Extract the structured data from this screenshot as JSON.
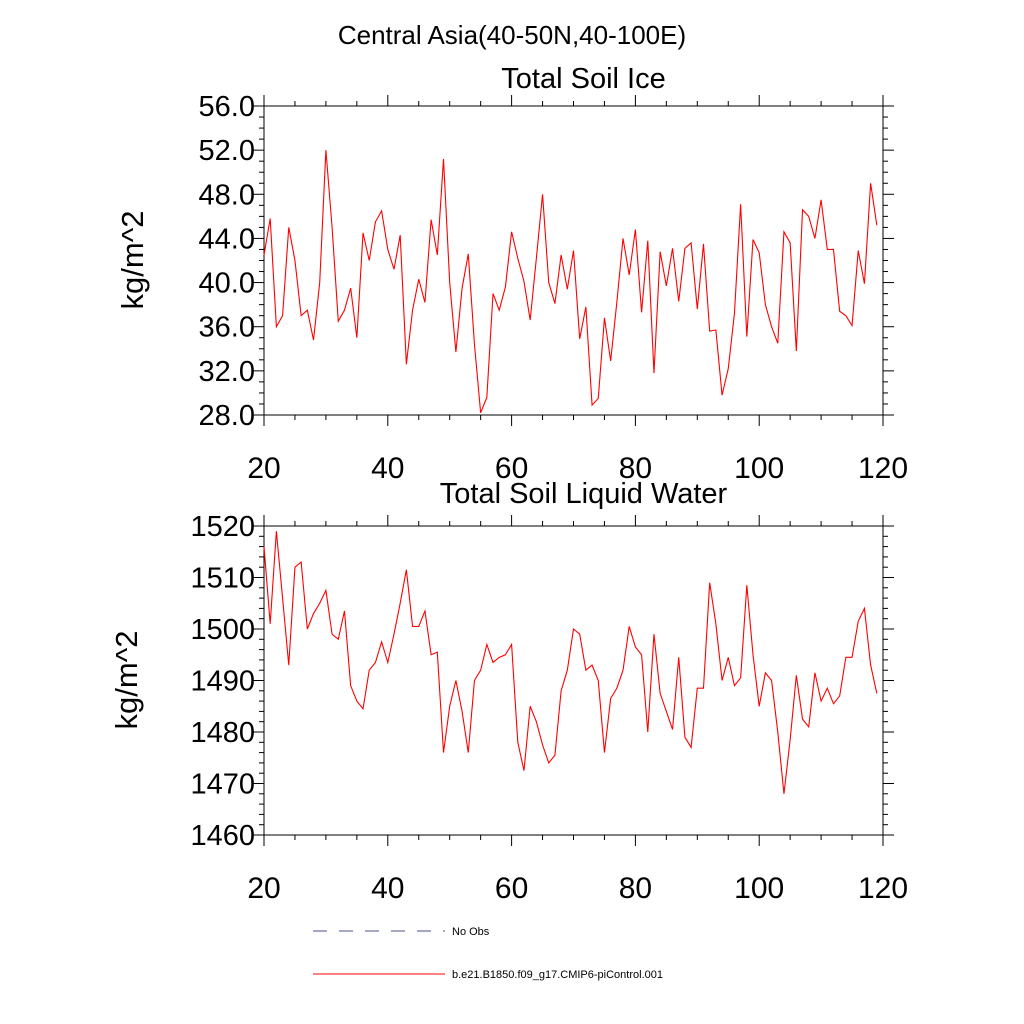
{
  "figure": {
    "region_title": "Central Asia(40-50N,40-100E)"
  },
  "chart_data": [
    {
      "type": "line",
      "title": "Total Soil Ice",
      "xlabel": "",
      "ylabel": "kg/m^2",
      "xlim": [
        20,
        120
      ],
      "ylim": [
        28,
        56
      ],
      "x_ticks": [
        20,
        40,
        60,
        80,
        100,
        120
      ],
      "x_tick_labels": [
        "20",
        "40",
        "60",
        "80",
        "100",
        "120"
      ],
      "y_ticks": [
        28,
        32,
        36,
        40,
        44,
        48,
        52,
        56
      ],
      "y_tick_labels": [
        "28.0",
        "32.0",
        "36.0",
        "40.0",
        "44.0",
        "48.0",
        "52.0",
        "56.0"
      ],
      "x_start": 20,
      "series": [
        {
          "name": "b.e21.B1850.f09_g17.CMIP6-piControl.001",
          "color": "#ff0000",
          "values": [
            42.5,
            45.8,
            36.0,
            37.0,
            45.0,
            42.0,
            37.0,
            37.5,
            34.8,
            40.0,
            52.0,
            45.0,
            36.5,
            37.5,
            39.5,
            35.0,
            44.5,
            42.0,
            45.5,
            46.5,
            43.0,
            41.2,
            44.3,
            32.6,
            37.5,
            40.3,
            38.2,
            45.7,
            42.5,
            51.2,
            40.0,
            33.7,
            39.5,
            42.6,
            34.4,
            28.2,
            29.6,
            39.0,
            37.5,
            39.6,
            44.6,
            42.2,
            40.1,
            36.6,
            42.2,
            48.0,
            40.0,
            38.1,
            42.5,
            39.4,
            42.9,
            34.9,
            37.8,
            28.9,
            29.5,
            36.8,
            32.9,
            38.2,
            44.0,
            40.7,
            44.8,
            37.3,
            43.8,
            31.8,
            42.8,
            39.7,
            43.1,
            38.3,
            43.1,
            43.6,
            37.6,
            43.5,
            35.6,
            35.7,
            29.8,
            32.2,
            37.2,
            47.1,
            35.1,
            43.9,
            42.7,
            38.0,
            36.0,
            34.5,
            44.6,
            43.6,
            33.8,
            46.6,
            46.0,
            44.0,
            47.5,
            43.0,
            43.0,
            37.4,
            37.0,
            36.1,
            42.9,
            39.9,
            49.0,
            45.2
          ]
        }
      ]
    },
    {
      "type": "line",
      "title": "Total Soil Liquid Water",
      "xlabel": "",
      "ylabel": "kg/m^2",
      "xlim": [
        20,
        120
      ],
      "ylim": [
        1460,
        1520
      ],
      "x_ticks": [
        20,
        40,
        60,
        80,
        100,
        120
      ],
      "x_tick_labels": [
        "20",
        "40",
        "60",
        "80",
        "100",
        "120"
      ],
      "y_ticks": [
        1460,
        1470,
        1480,
        1490,
        1500,
        1510,
        1520
      ],
      "y_tick_labels": [
        "1460",
        "1470",
        "1480",
        "1490",
        "1500",
        "1510",
        "1520"
      ],
      "x_start": 20,
      "series": [
        {
          "name": "b.e21.B1850.f09_g17.CMIP6-piControl.001",
          "color": "#ff0000",
          "values": [
            1516,
            1501,
            1519,
            1506,
            1493,
            1512,
            1513,
            1500,
            1503,
            1505,
            1507.5,
            1499,
            1498,
            1503.5,
            1489,
            1486,
            1484.5,
            1492,
            1493.5,
            1497.5,
            1493.5,
            1499,
            1505,
            1511.5,
            1500.5,
            1500.5,
            1503.5,
            1495,
            1495.5,
            1476,
            1485,
            1490,
            1484,
            1476,
            1490,
            1492,
            1497,
            1493.5,
            1494.5,
            1495,
            1497,
            1478,
            1472.5,
            1485,
            1482,
            1477.5,
            1474,
            1475.5,
            1488,
            1492,
            1500,
            1499,
            1492,
            1493,
            1490,
            1476,
            1486.5,
            1488.5,
            1492,
            1500.5,
            1496.5,
            1495,
            1480,
            1499,
            1487.5,
            1484,
            1480.5,
            1494.5,
            1479,
            1477,
            1488.5,
            1488.5,
            1509,
            1501,
            1490,
            1494.5,
            1489,
            1490.5,
            1508.5,
            1495,
            1485,
            1491.5,
            1490,
            1480,
            1468,
            1478.5,
            1491,
            1482.5,
            1481,
            1491.5,
            1486,
            1488.5,
            1485.5,
            1487,
            1494.5,
            1494.5,
            1501.5,
            1504,
            1493,
            1487.5
          ]
        }
      ]
    }
  ],
  "legend": {
    "position": "bottom-center",
    "entries": [
      {
        "label": "No Obs",
        "color": "#4a4f8c",
        "style": "dashed"
      },
      {
        "label": "b.e21.B1850.f09_g17.CMIP6-piControl.001",
        "color": "#ff0000",
        "style": "solid"
      }
    ]
  }
}
